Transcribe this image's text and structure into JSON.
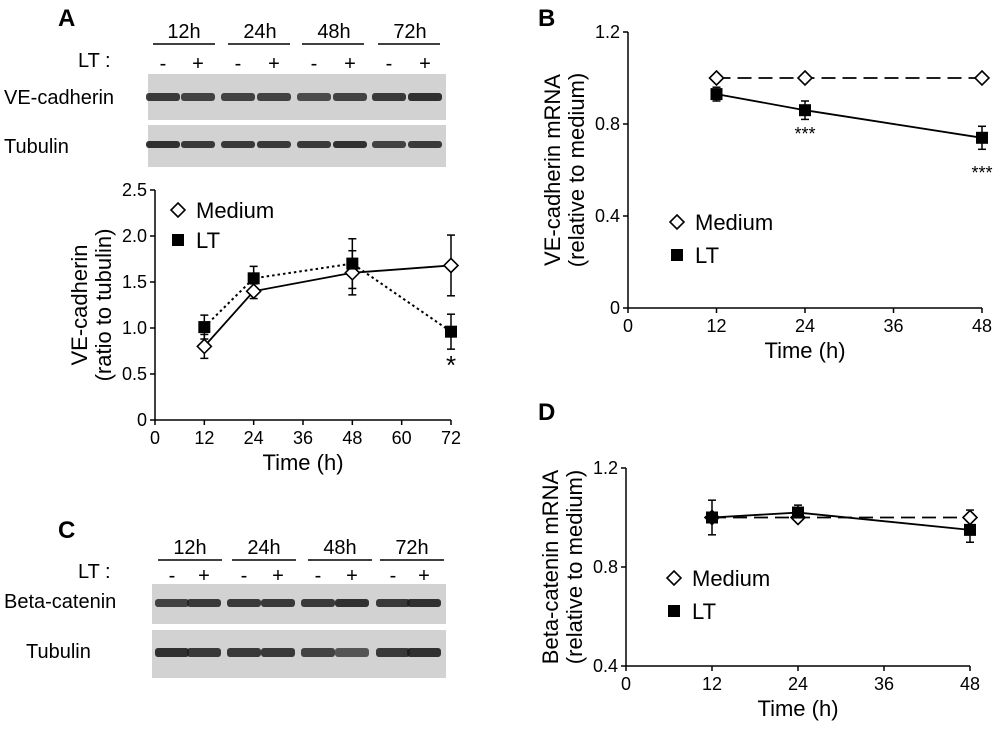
{
  "panel_labels": [
    "A",
    "B",
    "C",
    "D"
  ],
  "blot_A": {
    "time_labels": [
      "12h",
      "24h",
      "48h",
      "72h"
    ],
    "treatment_label": "LT :",
    "signs": [
      "-",
      "+",
      "-",
      "+",
      "-",
      "+",
      "-",
      "+"
    ],
    "row_labels": [
      "VE-cadherin",
      "Tubulin"
    ]
  },
  "blot_C": {
    "time_labels": [
      "12h",
      "24h",
      "48h",
      "72h"
    ],
    "treatment_label": "LT :",
    "signs": [
      "-",
      "+",
      "-",
      "+",
      "-",
      "+",
      "-",
      "+"
    ],
    "row_labels": [
      "Beta-catenin",
      "Tubulin"
    ]
  },
  "chart_data": [
    {
      "panel": "A",
      "type": "line",
      "ylabel": "VE-cadherin",
      "ylabel2": "(ratio to tubulin)",
      "xlabel": "Time (h)",
      "xlim": [
        0,
        72
      ],
      "ylim": [
        0,
        2.5
      ],
      "xticks": [
        0,
        12,
        24,
        36,
        48,
        60,
        72
      ],
      "yticks": [
        0,
        0.5,
        1.0,
        1.5,
        2.0,
        2.5
      ],
      "ytick_labels": [
        "0",
        "0.5",
        "1.0",
        "1.5",
        "2.0",
        "2.5"
      ],
      "legend": [
        "Medium",
        "LT"
      ],
      "legend_position": "top-left",
      "series": [
        {
          "name": "Medium",
          "marker": "diamond-open",
          "line": "solid",
          "x": [
            12,
            24,
            48,
            72
          ],
          "y": [
            0.8,
            1.4,
            1.6,
            1.68
          ],
          "err": [
            0.13,
            0.08,
            0.24,
            0.33
          ]
        },
        {
          "name": "LT",
          "marker": "square-filled",
          "line": "dotted",
          "x": [
            12,
            24,
            48,
            72
          ],
          "y": [
            1.01,
            1.54,
            1.7,
            0.96
          ],
          "err": [
            0.13,
            0.13,
            0.27,
            0.19
          ]
        }
      ],
      "annotations": [
        {
          "text": "*",
          "x": 72,
          "y": 0.5
        }
      ]
    },
    {
      "panel": "B",
      "type": "line",
      "ylabel": "VE-cadherin mRNA",
      "ylabel2": "(relative to medium)",
      "xlabel": "Time (h)",
      "xlim": [
        0,
        48
      ],
      "ylim": [
        0,
        1.2
      ],
      "xticks": [
        0,
        12,
        24,
        36,
        48
      ],
      "yticks": [
        0,
        0.4,
        0.8,
        1.2
      ],
      "ytick_labels": [
        "0",
        "0.4",
        "0.8",
        "1.2"
      ],
      "legend": [
        "Medium",
        "LT"
      ],
      "legend_position": "center-left",
      "series": [
        {
          "name": "Medium",
          "marker": "diamond-open",
          "line": "dashed",
          "x": [
            12,
            24,
            48
          ],
          "y": [
            1.0,
            1.0,
            1.0
          ],
          "err": [
            0,
            0,
            0
          ]
        },
        {
          "name": "LT",
          "marker": "square-filled",
          "line": "solid",
          "x": [
            12,
            24,
            48
          ],
          "y": [
            0.93,
            0.86,
            0.74
          ],
          "err": [
            0.03,
            0.04,
            0.05
          ]
        }
      ],
      "annotations": [
        {
          "text": "***",
          "x": 24,
          "y": 0.73
        },
        {
          "text": "***",
          "x": 48,
          "y": 0.56
        }
      ]
    },
    {
      "panel": "D",
      "type": "line",
      "ylabel": "Beta-catenin mRNA",
      "ylabel2": "(relative to medium)",
      "xlabel": "Time (h)",
      "xlim": [
        0,
        48
      ],
      "ylim": [
        0.4,
        1.2
      ],
      "xticks": [
        0,
        12,
        24,
        36,
        48
      ],
      "yticks": [
        0.4,
        0.8,
        1.2
      ],
      "ytick_labels": [
        "0.4",
        "0.8",
        "1.2"
      ],
      "legend": [
        "Medium",
        "LT"
      ],
      "legend_position": "center-left",
      "series": [
        {
          "name": "Medium",
          "marker": "diamond-open",
          "line": "dashed",
          "x": [
            12,
            24,
            48
          ],
          "y": [
            1.0,
            1.0,
            1.0
          ],
          "err": [
            0.0,
            0.0,
            0.03
          ]
        },
        {
          "name": "LT",
          "marker": "square-filled",
          "line": "solid",
          "x": [
            12,
            24,
            48
          ],
          "y": [
            1.0,
            1.02,
            0.95
          ],
          "err": [
            0.07,
            0.03,
            0.05
          ]
        }
      ],
      "annotations": []
    }
  ]
}
